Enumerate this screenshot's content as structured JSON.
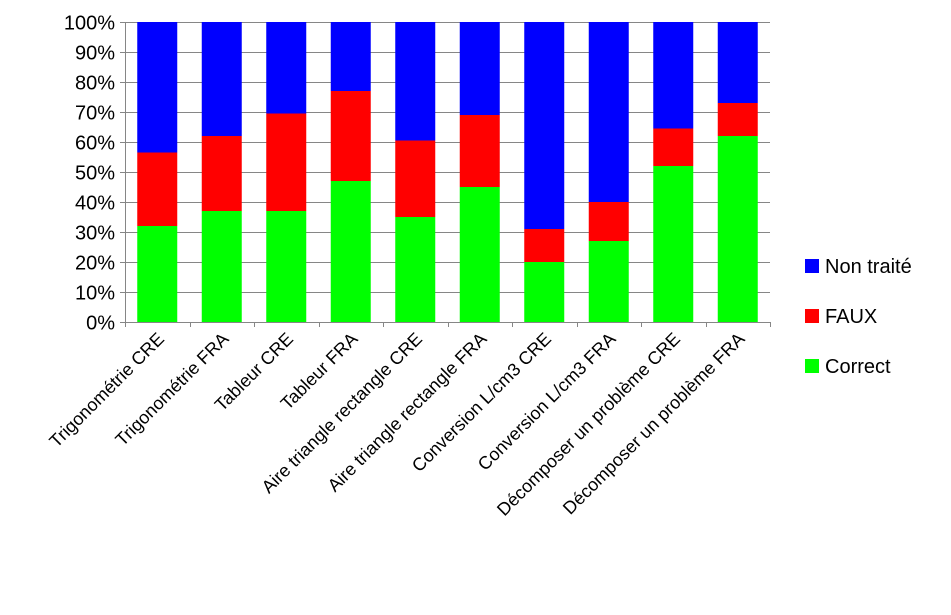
{
  "chart_data": {
    "type": "bar",
    "stacked": true,
    "normalized": true,
    "title": "",
    "xlabel": "",
    "ylabel": "",
    "ylim": [
      0,
      100
    ],
    "y_ticks": [
      "0%",
      "10%",
      "20%",
      "30%",
      "40%",
      "50%",
      "60%",
      "70%",
      "80%",
      "90%",
      "100%"
    ],
    "grid": true,
    "legend_position": "right",
    "categories": [
      "Trigonométrie CRE",
      "Trigonométrie FRA",
      "Tableur CRE",
      "Tableur FRA",
      "Aire triangle rectangle CRE",
      "Aire triangle rectangle FRA",
      "Conversion L/cm3 CRE",
      "Conversion L/cm3 FRA",
      "Décomposer un problème CRE",
      "Décomposer un problème FRA"
    ],
    "series": [
      {
        "name": "Correct",
        "color": "#00ff00",
        "values": [
          32,
          37,
          37,
          47,
          35,
          45,
          20,
          27,
          52,
          62
        ]
      },
      {
        "name": "FAUX",
        "color": "#ff0000",
        "values": [
          24.5,
          25,
          32.5,
          30,
          25.5,
          24,
          11,
          13,
          12.5,
          11
        ]
      },
      {
        "name": "Non traité",
        "color": "#0000ff",
        "values": [
          43.5,
          38,
          30.5,
          23,
          39.5,
          31,
          69,
          60,
          35.5,
          27
        ]
      }
    ],
    "legend_order": [
      "Non traité",
      "FAUX",
      "Correct"
    ]
  }
}
